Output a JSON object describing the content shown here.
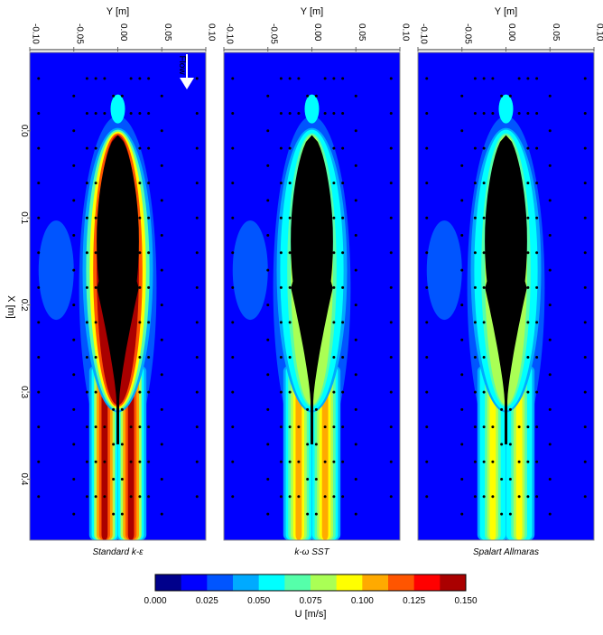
{
  "figure": {
    "y_axis_label": "Y [m]",
    "x_axis_label": "X [m]",
    "flow_label": "Flow",
    "colorbar_label": "U [m/s]",
    "colorbar_ticks": [
      "0.000",
      "0.025",
      "0.050",
      "0.075",
      "0.100",
      "0.125",
      "0.150"
    ],
    "colorbar_levels": [
      "#00008b",
      "#0000ff",
      "#0055ff",
      "#00aaff",
      "#00ffff",
      "#55ffaa",
      "#aaff55",
      "#ffff00",
      "#ffaa00",
      "#ff5500",
      "#ff0000",
      "#aa0000"
    ],
    "y_ticks": [
      "-0.10",
      "-0.05",
      "0.00",
      "0.05",
      "0.10"
    ],
    "x_ticks": [
      "0.0",
      "0.1",
      "0.2",
      "0.3",
      "0.4"
    ]
  },
  "chart_data": [
    {
      "type": "heatmap",
      "title": "Standard k-ε",
      "variable": "U [m/s]",
      "xlabel": "Y [m]",
      "ylabel": "X [m]",
      "xlim": [
        -0.1,
        0.1
      ],
      "ylim": [
        -0.09,
        0.47
      ],
      "colorbar_range": [
        0.0,
        0.15
      ],
      "wake_peak_u": 0.14,
      "body_edge_peak_u": 0.14
    },
    {
      "type": "heatmap",
      "title": "k-ω SST",
      "variable": "U [m/s]",
      "xlabel": "Y [m]",
      "ylabel": "X [m]",
      "xlim": [
        -0.1,
        0.1
      ],
      "ylim": [
        -0.09,
        0.47
      ],
      "colorbar_range": [
        0.0,
        0.15
      ],
      "wake_peak_u": 0.11,
      "body_edge_peak_u": 0.08
    },
    {
      "type": "heatmap",
      "title": "Spalart Allmaras",
      "variable": "U [m/s]",
      "xlabel": "Y [m]",
      "ylabel": "X [m]",
      "xlim": [
        -0.1,
        0.1
      ],
      "ylim": [
        -0.09,
        0.47
      ],
      "colorbar_range": [
        0.0,
        0.15
      ],
      "wake_peak_u": 0.09,
      "body_edge_peak_u": 0.08
    }
  ]
}
